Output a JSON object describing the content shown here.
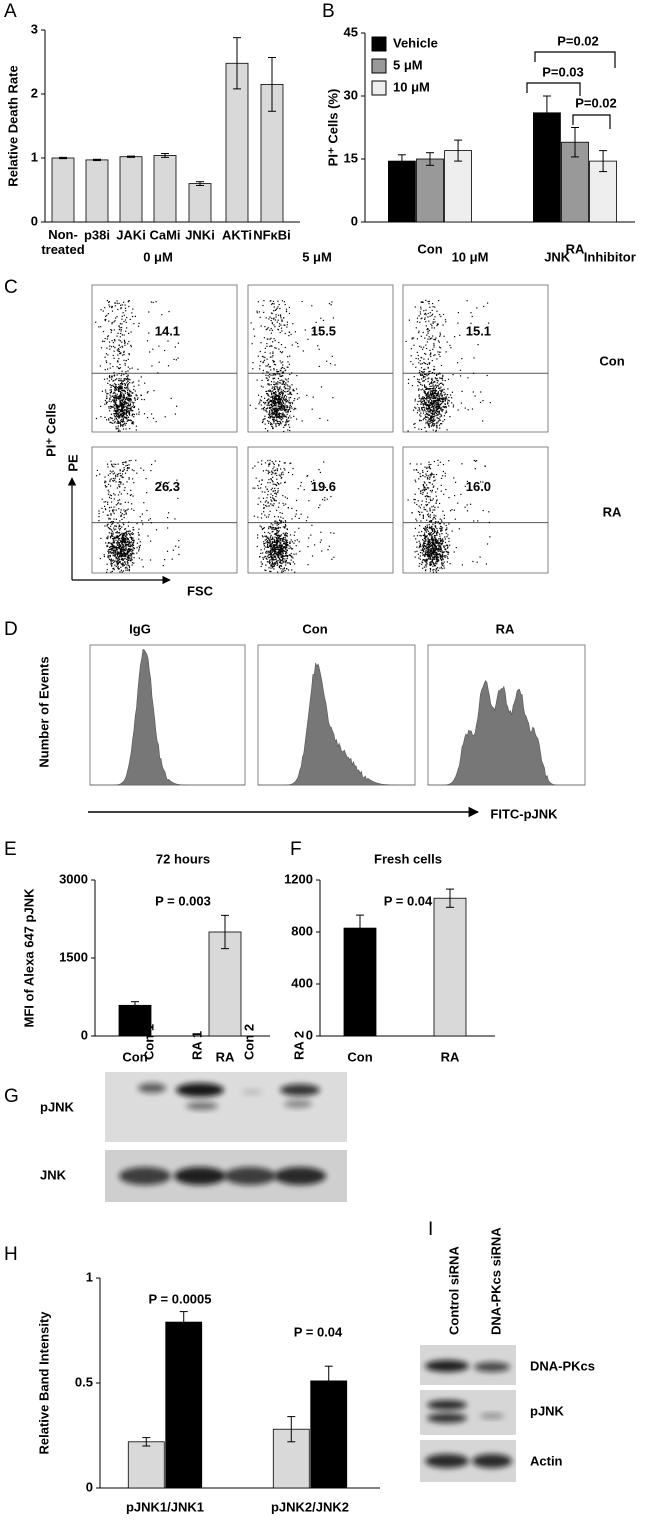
{
  "chart_data": [
    {
      "panel": "A",
      "type": "bar",
      "y_label": "Relative Death Rate",
      "categories": [
        "Non-\ntreated",
        "p38i",
        "JAKi",
        "CaMi",
        "JNKi",
        "AKTi",
        "NFκBi"
      ],
      "values": [
        1.0,
        0.97,
        1.02,
        1.04,
        0.6,
        2.48,
        2.15
      ],
      "errors": [
        0.01,
        0.01,
        0.01,
        0.03,
        0.03,
        0.4,
        0.42
      ],
      "color": "#d9d9d9",
      "ylim": [
        0,
        3
      ],
      "yticks": [
        0,
        1,
        2,
        3
      ]
    },
    {
      "panel": "B",
      "type": "bar",
      "y_label": "PI⁺ Cells (%)",
      "categories": [
        "Con",
        "RA"
      ],
      "series": [
        {
          "name": "Vehicle",
          "color": "#000000",
          "values": [
            14.5,
            26
          ],
          "errors": [
            1.5,
            4
          ]
        },
        {
          "name": "5 μM",
          "color": "#999999",
          "values": [
            15,
            19
          ],
          "errors": [
            1.5,
            3.5
          ]
        },
        {
          "name": "10 μM",
          "color": "#eeeeee",
          "values": [
            17,
            14.5
          ],
          "errors": [
            2.5,
            2.5
          ]
        }
      ],
      "ylim": [
        0,
        45
      ],
      "yticks": [
        0,
        15,
        30,
        45
      ],
      "legend": "top-left",
      "annotations": [
        "P=0.02",
        "P=0.03",
        "P=0.02"
      ]
    },
    {
      "panel": "E",
      "type": "bar",
      "title": "72 hours",
      "y_label": "MFI of Alexa 647 pJNK",
      "categories": [
        "Con",
        "RA"
      ],
      "values": [
        590,
        2000
      ],
      "errors": [
        70,
        320
      ],
      "colors": [
        "#000000",
        "#d9d9d9"
      ],
      "ylim": [
        0,
        3000
      ],
      "yticks": [
        0,
        1500,
        3000
      ],
      "annotations": [
        "P = 0.003"
      ]
    },
    {
      "panel": "F",
      "type": "bar",
      "title": "Fresh cells",
      "categories": [
        "Con",
        "RA"
      ],
      "values": [
        830,
        1060
      ],
      "errors": [
        100,
        70
      ],
      "colors": [
        "#000000",
        "#d9d9d9"
      ],
      "ylim": [
        0,
        1200
      ],
      "yticks": [
        0,
        400,
        800,
        1200
      ],
      "annotations": [
        "P = 0.04"
      ]
    },
    {
      "panel": "H",
      "type": "bar",
      "y_label": "Relative Band Intensity",
      "categories": [
        "pJNK1/JNK1",
        "pJNK2/JNK2"
      ],
      "series": [
        {
          "color": "#d9d9d9",
          "values": [
            0.22,
            0.28
          ],
          "errors": [
            0.02,
            0.06
          ]
        },
        {
          "color": "#000000",
          "values": [
            0.79,
            0.51
          ],
          "errors": [
            0.05,
            0.07
          ]
        }
      ],
      "ylim": [
        0,
        1
      ],
      "yticks": [
        0,
        0.5,
        1
      ],
      "annotations": [
        "P = 0.0005",
        "P = 0.04"
      ]
    }
  ],
  "panel_c": {
    "panel": "C",
    "columns": [
      "0 μM",
      "5 μM",
      "10 μM"
    ],
    "column_note": "JNK Inhibitor",
    "rows": [
      "Con",
      "RA"
    ],
    "gates": [
      [
        "14.1",
        "15.5",
        "15.1"
      ],
      [
        "26.3",
        "19.6",
        "16.0"
      ]
    ],
    "y_label": "PI⁺ Cells",
    "y_axis": "PE",
    "x_axis": "FSC"
  },
  "panel_d": {
    "panel": "D",
    "samples": [
      "IgG",
      "Con",
      "RA"
    ],
    "y_label": "Number of Events",
    "x_axis": "FITC-pJNK"
  },
  "panel_g": {
    "panel": "G",
    "lanes": [
      "Con 1",
      "RA 1",
      "Con 2",
      "RA 2"
    ],
    "rows": [
      "pJNK",
      "JNK"
    ]
  },
  "panel_i": {
    "panel": "I",
    "lanes": [
      "Control siRNA",
      "DNA-PKcs siRNA"
    ],
    "rows": [
      "DNA-PKcs",
      "pJNK",
      "Actin"
    ]
  }
}
